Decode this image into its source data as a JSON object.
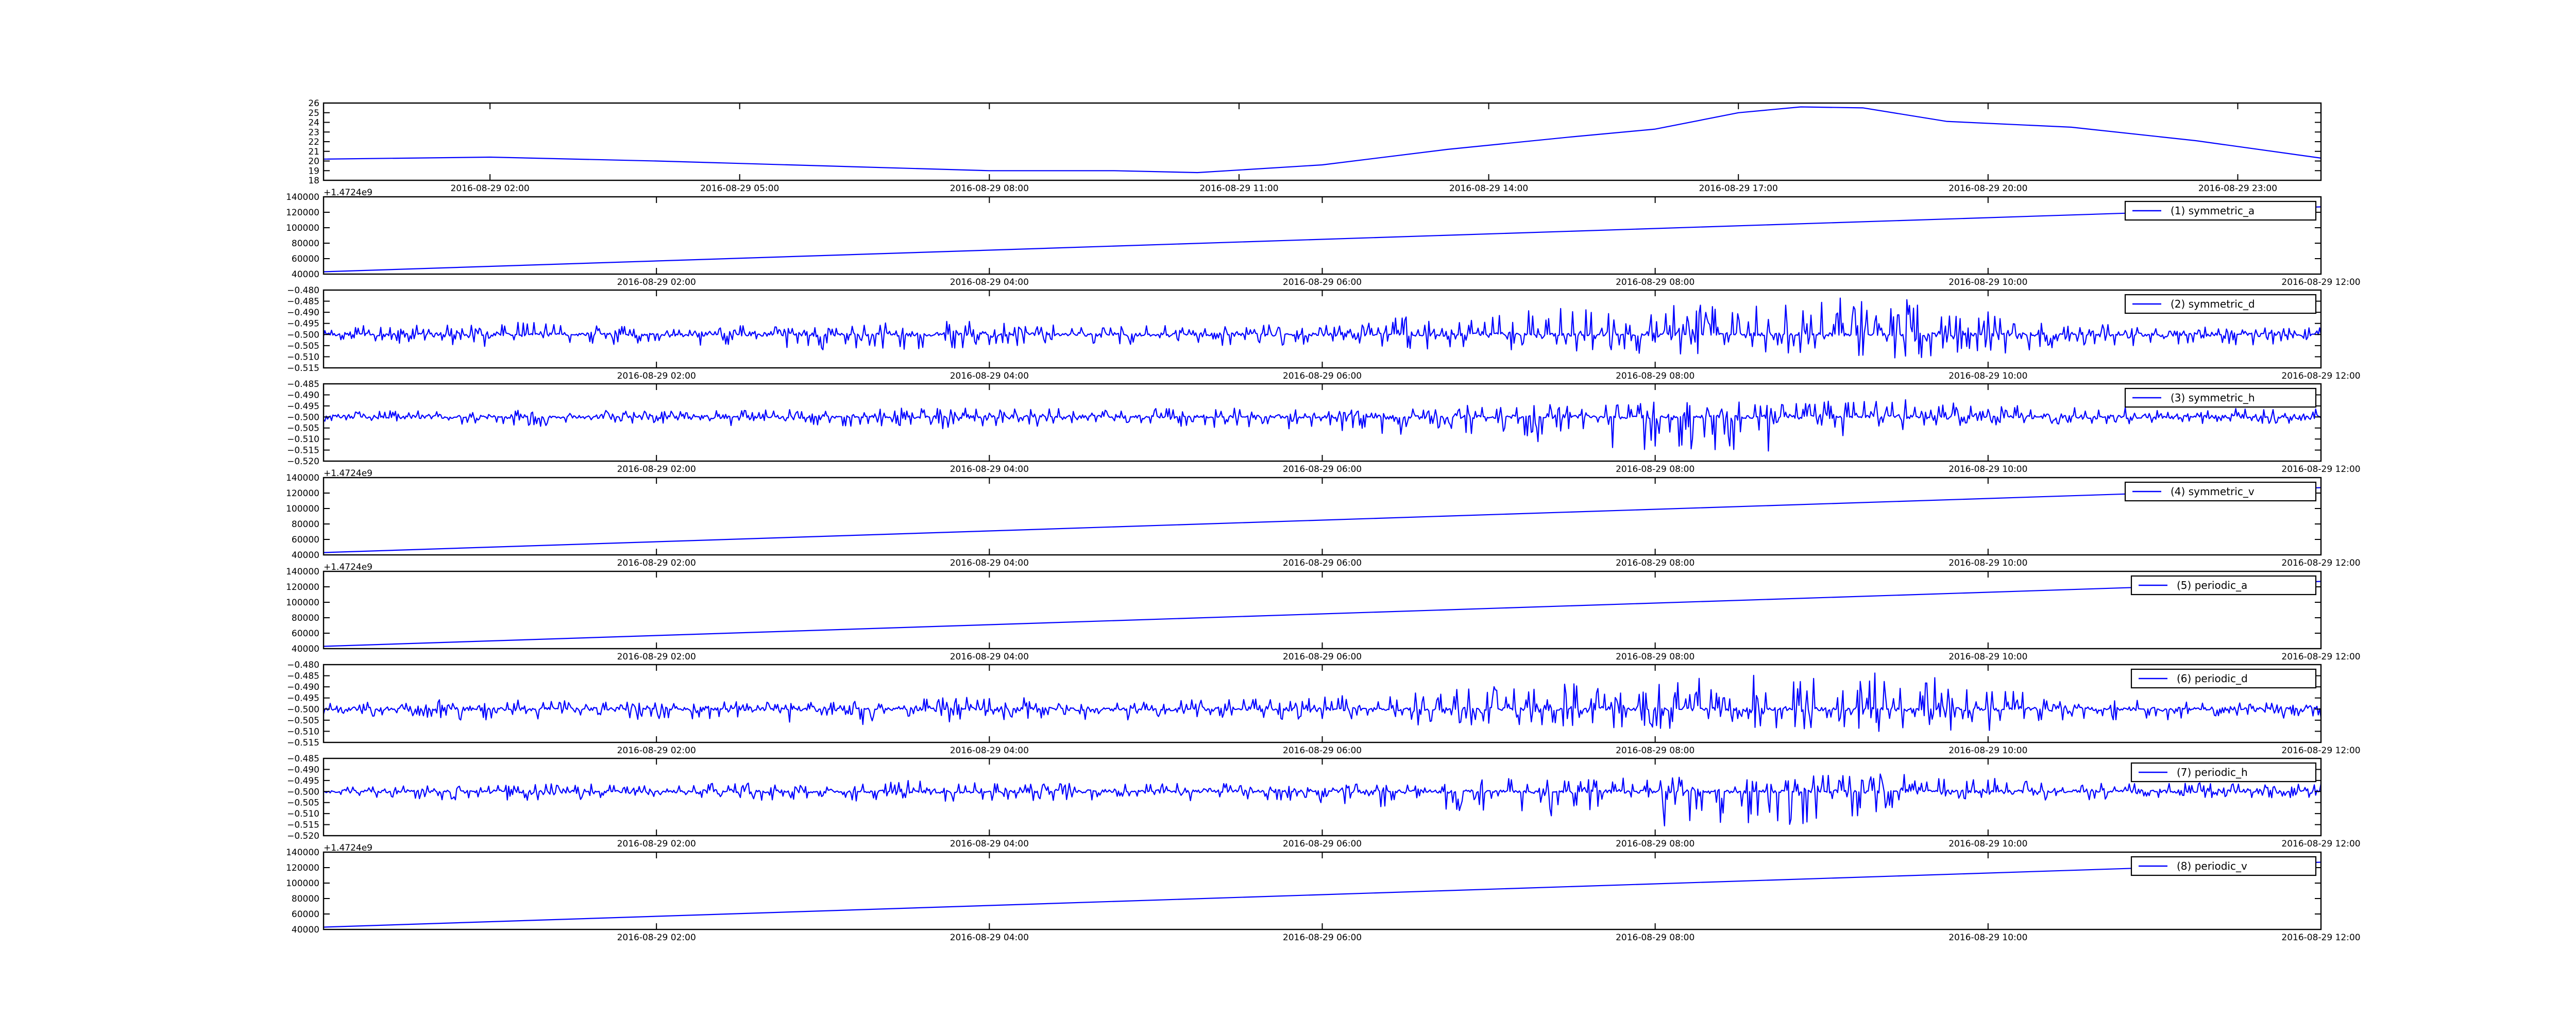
{
  "figure": {
    "background": "#ffffff",
    "line_color": "#0000ff"
  },
  "chart_data": [
    {
      "type": "line",
      "title": "",
      "xlabel": "",
      "ylabel": "",
      "offset_label": "",
      "legend": "",
      "ylim": [
        18,
        26
      ],
      "yticks": [
        "18",
        "19",
        "20",
        "21",
        "22",
        "23",
        "24",
        "25",
        "26"
      ],
      "xticks": [
        "2016-08-29 02:00",
        "2016-08-29 05:00",
        "2016-08-29 08:00",
        "2016-08-29 11:00",
        "2016-08-29 14:00",
        "2016-08-29 17:00",
        "2016-08-29 20:00",
        "2016-08-29 23:00"
      ],
      "xlim": [
        "2016-08-29 00:00",
        "2016-08-30 00:00"
      ],
      "x": [
        "2016-08-29 00:00",
        "2016-08-29 02:00",
        "2016-08-29 04:00",
        "2016-08-29 06:00",
        "2016-08-29 08:00",
        "2016-08-29 09:30",
        "2016-08-29 10:30",
        "2016-08-29 12:00",
        "2016-08-29 13:30",
        "2016-08-29 15:00",
        "2016-08-29 16:00",
        "2016-08-29 17:00",
        "2016-08-29 17:45",
        "2016-08-29 18:30",
        "2016-08-29 19:30",
        "2016-08-29 21:00",
        "2016-08-29 22:30",
        "2016-08-30 00:00"
      ],
      "series": [
        {
          "name": "",
          "values": [
            20.2,
            20.4,
            20.0,
            19.5,
            19.0,
            19.0,
            18.8,
            19.6,
            21.2,
            22.5,
            23.3,
            25.0,
            25.6,
            25.5,
            24.1,
            23.5,
            22.1,
            20.3
          ]
        }
      ]
    },
    {
      "type": "line",
      "offset_label": "+1.4724e9",
      "legend": "(1) symmetric_a",
      "ylim": [
        40000,
        140000
      ],
      "yticks": [
        "40000",
        "60000",
        "80000",
        "100000",
        "120000",
        "140000"
      ],
      "xticks": [
        "2016-08-29 02:00",
        "2016-08-29 04:00",
        "2016-08-29 06:00",
        "2016-08-29 08:00",
        "2016-08-29 10:00",
        "2016-08-29 12:00"
      ],
      "xlim": [
        "2016-08-29 00:00",
        "2016-08-29 12:00"
      ],
      "x": [
        "2016-08-29 00:00",
        "2016-08-29 12:00"
      ],
      "series": [
        {
          "name": "(1) symmetric_a",
          "values": [
            43000,
            127000
          ]
        }
      ]
    },
    {
      "type": "line",
      "offset_label": "",
      "legend": "(2) symmetric_d",
      "ylim": [
        -0.515,
        -0.48
      ],
      "yticks": [
        "−0.515",
        "−0.510",
        "−0.505",
        "−0.500",
        "−0.495",
        "−0.490",
        "−0.485",
        "−0.480"
      ],
      "xticks": [
        "2016-08-29 02:00",
        "2016-08-29 04:00",
        "2016-08-29 06:00",
        "2016-08-29 08:00",
        "2016-08-29 10:00",
        "2016-08-29 12:00"
      ],
      "xlim": [
        "2016-08-29 00:00",
        "2016-08-29 12:00"
      ],
      "baseline": -0.5,
      "envelope_hours": [
        0,
        0.5,
        1,
        1.5,
        2,
        2.5,
        3,
        3.5,
        4,
        4.5,
        5,
        5.5,
        6,
        6.5,
        7,
        7.5,
        8,
        8.5,
        9,
        9.5,
        10,
        10.5,
        11,
        11.5,
        12
      ],
      "envelope_max": [
        -0.496,
        -0.496,
        -0.494,
        -0.495,
        -0.497,
        -0.496,
        -0.497,
        -0.494,
        -0.494,
        -0.496,
        -0.496,
        -0.495,
        -0.494,
        -0.492,
        -0.49,
        -0.488,
        -0.486,
        -0.485,
        -0.483,
        -0.484,
        -0.488,
        -0.495,
        -0.496,
        -0.497,
        -0.497
      ],
      "envelope_min": [
        -0.503,
        -0.504,
        -0.506,
        -0.504,
        -0.505,
        -0.506,
        -0.507,
        -0.507,
        -0.506,
        -0.505,
        -0.505,
        -0.505,
        -0.505,
        -0.507,
        -0.508,
        -0.508,
        -0.509,
        -0.509,
        -0.51,
        -0.511,
        -0.51,
        -0.505,
        -0.505,
        -0.505,
        -0.504
      ]
    },
    {
      "type": "line",
      "offset_label": "",
      "legend": "(3) symmetric_h",
      "ylim": [
        -0.52,
        -0.485
      ],
      "yticks": [
        "−0.520",
        "−0.515",
        "−0.510",
        "−0.505",
        "−0.500",
        "−0.495",
        "−0.490",
        "−0.485"
      ],
      "xticks": [
        "2016-08-29 02:00",
        "2016-08-29 04:00",
        "2016-08-29 06:00",
        "2016-08-29 08:00",
        "2016-08-29 10:00",
        "2016-08-29 12:00"
      ],
      "xlim": [
        "2016-08-29 00:00",
        "2016-08-29 12:00"
      ],
      "baseline": -0.5,
      "envelope_hours": [
        0,
        0.5,
        1,
        1.5,
        2,
        2.5,
        3,
        3.5,
        4,
        4.5,
        5,
        5.5,
        6,
        6.5,
        7,
        7.5,
        8,
        8.5,
        9,
        9.5,
        10,
        10.5,
        11,
        11.5,
        12
      ],
      "envelope_max": [
        -0.498,
        -0.497,
        -0.497,
        -0.496,
        -0.497,
        -0.496,
        -0.497,
        -0.495,
        -0.496,
        -0.496,
        -0.496,
        -0.496,
        -0.497,
        -0.495,
        -0.494,
        -0.494,
        -0.493,
        -0.493,
        -0.492,
        -0.492,
        -0.494,
        -0.495,
        -0.496,
        -0.496,
        -0.496
      ],
      "envelope_min": [
        -0.502,
        -0.503,
        -0.505,
        -0.504,
        -0.503,
        -0.504,
        -0.504,
        -0.506,
        -0.505,
        -0.504,
        -0.504,
        -0.505,
        -0.506,
        -0.508,
        -0.511,
        -0.512,
        -0.516,
        -0.517,
        -0.515,
        -0.507,
        -0.504,
        -0.504,
        -0.503,
        -0.503,
        -0.503
      ]
    },
    {
      "type": "line",
      "offset_label": "+1.4724e9",
      "legend": "(4) symmetric_v",
      "ylim": [
        40000,
        140000
      ],
      "yticks": [
        "40000",
        "60000",
        "80000",
        "100000",
        "120000",
        "140000"
      ],
      "xticks": [
        "2016-08-29 02:00",
        "2016-08-29 04:00",
        "2016-08-29 06:00",
        "2016-08-29 08:00",
        "2016-08-29 10:00",
        "2016-08-29 12:00"
      ],
      "xlim": [
        "2016-08-29 00:00",
        "2016-08-29 12:00"
      ],
      "x": [
        "2016-08-29 00:00",
        "2016-08-29 12:00"
      ],
      "series": [
        {
          "name": "(4) symmetric_v",
          "values": [
            43000,
            127000
          ]
        }
      ]
    },
    {
      "type": "line",
      "offset_label": "+1.4724e9",
      "legend": "(5) periodic_a",
      "ylim": [
        40000,
        140000
      ],
      "yticks": [
        "40000",
        "60000",
        "80000",
        "100000",
        "120000",
        "140000"
      ],
      "xticks": [
        "2016-08-29 02:00",
        "2016-08-29 04:00",
        "2016-08-29 06:00",
        "2016-08-29 08:00",
        "2016-08-29 10:00",
        "2016-08-29 12:00"
      ],
      "xlim": [
        "2016-08-29 00:00",
        "2016-08-29 12:00"
      ],
      "x": [
        "2016-08-29 00:00",
        "2016-08-29 12:00"
      ],
      "series": [
        {
          "name": "(5) periodic_a",
          "values": [
            43000,
            127000
          ]
        }
      ]
    },
    {
      "type": "line",
      "offset_label": "",
      "legend": "(6) periodic_d",
      "ylim": [
        -0.515,
        -0.48
      ],
      "yticks": [
        "−0.515",
        "−0.510",
        "−0.505",
        "−0.500",
        "−0.495",
        "−0.490",
        "−0.485",
        "−0.480"
      ],
      "xticks": [
        "2016-08-29 02:00",
        "2016-08-29 04:00",
        "2016-08-29 06:00",
        "2016-08-29 08:00",
        "2016-08-29 10:00",
        "2016-08-29 12:00"
      ],
      "xlim": [
        "2016-08-29 00:00",
        "2016-08-29 12:00"
      ],
      "baseline": -0.5,
      "envelope_hours": [
        0,
        0.5,
        1,
        1.5,
        2,
        2.5,
        3,
        3.5,
        4,
        4.5,
        5,
        5.5,
        6,
        6.5,
        7,
        7.5,
        8,
        8.5,
        9,
        9.5,
        10,
        10.5,
        11,
        11.5,
        12
      ],
      "envelope_max": [
        -0.496,
        -0.496,
        -0.494,
        -0.495,
        -0.497,
        -0.496,
        -0.497,
        -0.494,
        -0.494,
        -0.496,
        -0.496,
        -0.495,
        -0.494,
        -0.492,
        -0.49,
        -0.488,
        -0.486,
        -0.485,
        -0.483,
        -0.484,
        -0.488,
        -0.495,
        -0.496,
        -0.497,
        -0.497
      ],
      "envelope_min": [
        -0.503,
        -0.504,
        -0.506,
        -0.504,
        -0.505,
        -0.506,
        -0.507,
        -0.507,
        -0.506,
        -0.505,
        -0.505,
        -0.505,
        -0.505,
        -0.507,
        -0.508,
        -0.508,
        -0.509,
        -0.509,
        -0.51,
        -0.511,
        -0.51,
        -0.505,
        -0.505,
        -0.505,
        -0.504
      ]
    },
    {
      "type": "line",
      "offset_label": "",
      "legend": "(7) periodic_h",
      "ylim": [
        -0.52,
        -0.485
      ],
      "yticks": [
        "−0.520",
        "−0.515",
        "−0.510",
        "−0.505",
        "−0.500",
        "−0.495",
        "−0.490",
        "−0.485"
      ],
      "xticks": [
        "2016-08-29 02:00",
        "2016-08-29 04:00",
        "2016-08-29 06:00",
        "2016-08-29 08:00",
        "2016-08-29 10:00",
        "2016-08-29 12:00"
      ],
      "xlim": [
        "2016-08-29 00:00",
        "2016-08-29 12:00"
      ],
      "baseline": -0.5,
      "envelope_hours": [
        0,
        0.5,
        1,
        1.5,
        2,
        2.5,
        3,
        3.5,
        4,
        4.5,
        5,
        5.5,
        6,
        6.5,
        7,
        7.5,
        8,
        8.5,
        9,
        9.5,
        10,
        10.5,
        11,
        11.5,
        12
      ],
      "envelope_max": [
        -0.498,
        -0.497,
        -0.497,
        -0.496,
        -0.497,
        -0.496,
        -0.497,
        -0.495,
        -0.496,
        -0.496,
        -0.496,
        -0.496,
        -0.497,
        -0.495,
        -0.494,
        -0.494,
        -0.493,
        -0.493,
        -0.492,
        -0.492,
        -0.494,
        -0.495,
        -0.496,
        -0.496,
        -0.496
      ],
      "envelope_min": [
        -0.502,
        -0.503,
        -0.505,
        -0.504,
        -0.503,
        -0.504,
        -0.504,
        -0.506,
        -0.505,
        -0.504,
        -0.504,
        -0.505,
        -0.506,
        -0.508,
        -0.511,
        -0.512,
        -0.516,
        -0.517,
        -0.515,
        -0.507,
        -0.504,
        -0.504,
        -0.503,
        -0.503,
        -0.503
      ]
    },
    {
      "type": "line",
      "offset_label": "+1.4724e9",
      "legend": "(8) periodic_v",
      "ylim": [
        40000,
        140000
      ],
      "yticks": [
        "40000",
        "60000",
        "80000",
        "100000",
        "120000",
        "140000"
      ],
      "xticks": [
        "2016-08-29 02:00",
        "2016-08-29 04:00",
        "2016-08-29 06:00",
        "2016-08-29 08:00",
        "2016-08-29 10:00",
        "2016-08-29 12:00"
      ],
      "xlim": [
        "2016-08-29 00:00",
        "2016-08-29 12:00"
      ],
      "x": [
        "2016-08-29 00:00",
        "2016-08-29 12:00"
      ],
      "series": [
        {
          "name": "(8) periodic_v",
          "values": [
            43000,
            127000
          ]
        }
      ]
    }
  ]
}
